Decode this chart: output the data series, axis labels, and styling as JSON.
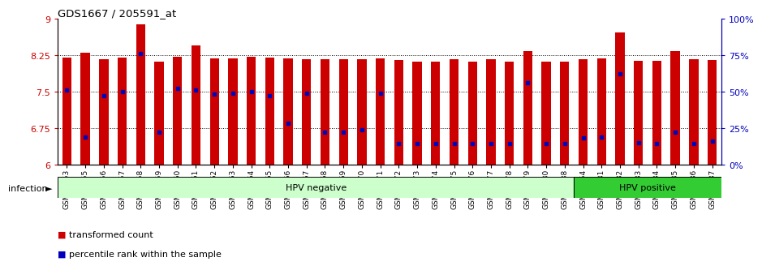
{
  "title": "GDS1667 / 205591_at",
  "y_min": 6,
  "y_max": 9,
  "y_ticks_left": [
    6,
    6.75,
    7.5,
    8.25,
    9
  ],
  "y_right_pct": [
    0,
    25,
    50,
    75,
    100
  ],
  "y_right_labels": [
    "0%",
    "25%",
    "50%",
    "75%",
    "100%"
  ],
  "bar_color": "#CC0000",
  "marker_color": "#0000BB",
  "samples": [
    "GSM73653",
    "GSM73655",
    "GSM73656",
    "GSM73657",
    "GSM73658",
    "GSM73659",
    "GSM73660",
    "GSM73661",
    "GSM73662",
    "GSM73663",
    "GSM73664",
    "GSM73665",
    "GSM73666",
    "GSM73667",
    "GSM73668",
    "GSM73669",
    "GSM73670",
    "GSM73671",
    "GSM73672",
    "GSM73673",
    "GSM73674",
    "GSM73675",
    "GSM73676",
    "GSM73677",
    "GSM73678",
    "GSM73679",
    "GSM73680",
    "GSM73688",
    "GSM73654",
    "GSM73681",
    "GSM73682",
    "GSM73683",
    "GSM73684",
    "GSM73685",
    "GSM73686",
    "GSM73687"
  ],
  "bar_values": [
    8.2,
    8.3,
    8.17,
    8.2,
    8.88,
    8.12,
    8.22,
    8.45,
    8.18,
    8.18,
    8.22,
    8.2,
    8.18,
    8.17,
    8.17,
    8.16,
    8.17,
    8.18,
    8.15,
    8.12,
    8.12,
    8.17,
    8.12,
    8.17,
    8.12,
    8.34,
    8.12,
    8.12,
    8.17,
    8.18,
    8.72,
    8.14,
    8.13,
    8.34,
    8.17,
    8.15
  ],
  "percentile_pct": [
    51,
    19,
    47,
    50,
    76,
    22,
    52,
    51,
    48,
    49,
    50,
    47,
    28,
    49,
    22,
    22,
    24,
    49,
    14,
    14,
    14,
    14,
    14,
    14,
    14,
    56,
    14,
    14,
    18,
    19,
    62,
    15,
    14,
    22,
    14,
    16
  ],
  "hpv_negative_count": 28,
  "hpv_negative_label": "HPV negative",
  "hpv_positive_label": "HPV positive",
  "infection_label": "infection",
  "legend_bar_label": "transformed count",
  "legend_marker_label": "percentile rank within the sample",
  "hpv_neg_color": "#CCFFCC",
  "hpv_pos_color": "#33CC33",
  "tick_color_left": "#CC0000",
  "tick_color_right": "#0000BB"
}
